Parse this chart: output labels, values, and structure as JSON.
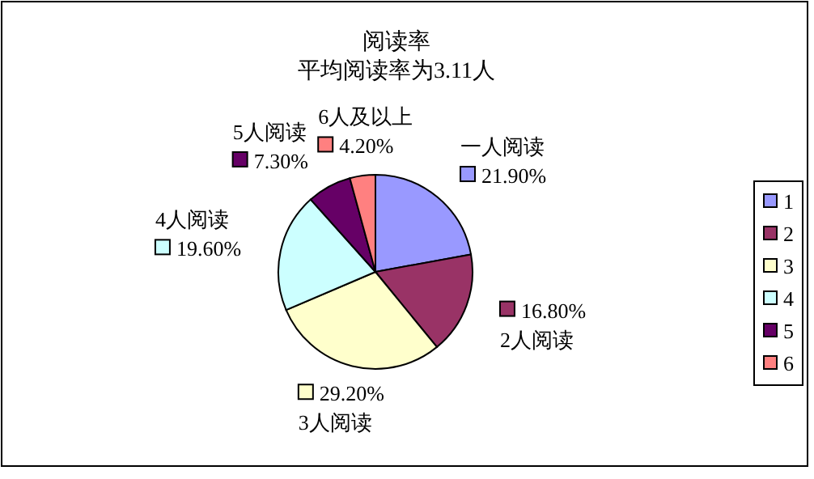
{
  "chart_data": {
    "type": "pie",
    "title": "阅读率",
    "subtitle": "平均阅读率为3.11人",
    "categories": [
      "1",
      "2",
      "3",
      "4",
      "5",
      "6"
    ],
    "values": [
      21.9,
      16.8,
      29.2,
      19.6,
      7.3,
      4.2
    ],
    "value_labels": [
      "21.90%",
      "16.80%",
      "29.20%",
      "19.60%",
      "7.30%",
      "4.20%"
    ],
    "colors": [
      "#9999ff",
      "#993366",
      "#ffffcc",
      "#ccffff",
      "#660066",
      "#ff8080"
    ],
    "annotations": [
      {
        "text": "一人阅读",
        "x": "1"
      },
      {
        "text": "2人阅读",
        "x": "2"
      },
      {
        "text": "3人阅读",
        "x": "3"
      },
      {
        "text": "4人阅读",
        "x": "4"
      },
      {
        "text": "5人阅读",
        "x": "5"
      },
      {
        "text": "6人及以上",
        "x": "6"
      }
    ],
    "legend": "right"
  }
}
